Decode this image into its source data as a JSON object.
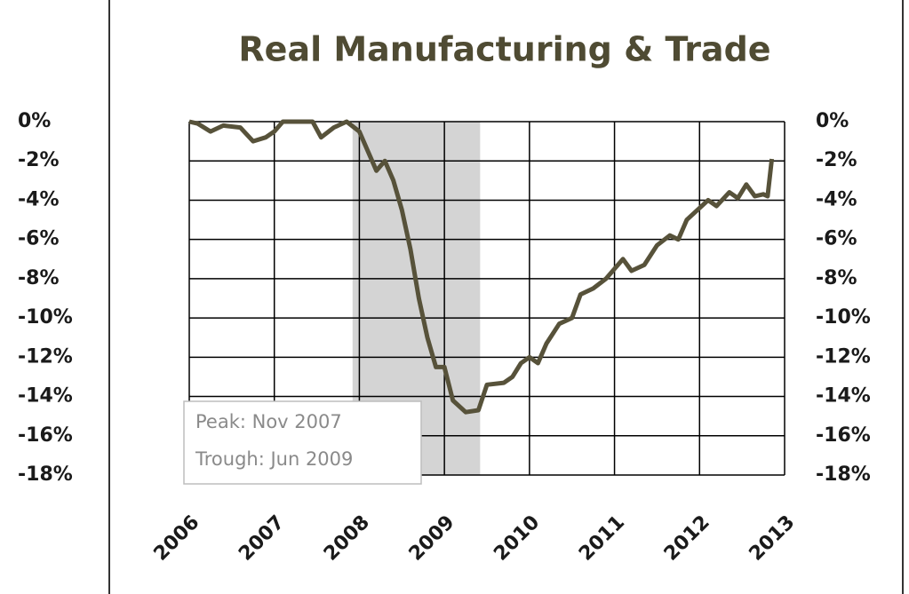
{
  "chart_data": {
    "type": "line",
    "title": "Real Manufacturing & Trade",
    "series": [
      {
        "name": "Real Manufacturing & Trade",
        "color": "#57523a",
        "x": [
          2006.0,
          2006.1,
          2006.25,
          2006.4,
          2006.6,
          2006.75,
          2006.9,
          2007.0,
          2007.1,
          2007.3,
          2007.45,
          2007.55,
          2007.7,
          2007.85,
          2008.0,
          2008.1,
          2008.2,
          2008.3,
          2008.4,
          2008.5,
          2008.6,
          2008.7,
          2008.8,
          2008.9,
          2009.0,
          2009.1,
          2009.25,
          2009.4,
          2009.5,
          2009.7,
          2009.8,
          2009.9,
          2010.0,
          2010.1,
          2010.2,
          2010.35,
          2010.5,
          2010.6,
          2010.75,
          2010.9,
          2011.0,
          2011.1,
          2011.2,
          2011.35,
          2011.5,
          2011.65,
          2011.75,
          2011.85,
          2012.0,
          2012.1,
          2012.2,
          2012.35,
          2012.45,
          2012.55,
          2012.65,
          2012.75,
          2012.8,
          2012.85
        ],
        "values": [
          0,
          -0.1,
          -0.5,
          -0.2,
          -0.3,
          -1.0,
          -0.8,
          -0.5,
          0,
          0,
          0,
          -0.8,
          -0.3,
          0,
          -0.5,
          -1.5,
          -2.5,
          -2.0,
          -3.0,
          -4.5,
          -6.5,
          -9.0,
          -11.0,
          -12.5,
          -12.5,
          -14.2,
          -14.8,
          -14.7,
          -13.4,
          -13.3,
          -13.0,
          -12.3,
          -12.0,
          -12.3,
          -11.3,
          -10.3,
          -10.0,
          -8.8,
          -8.5,
          -8.0,
          -7.5,
          -7.0,
          -7.6,
          -7.3,
          -6.3,
          -5.8,
          -6.0,
          -5.0,
          -4.4,
          -4.0,
          -4.3,
          -3.6,
          -3.9,
          -3.2,
          -3.8,
          -3.7,
          -3.8,
          -1.9
        ]
      }
    ],
    "xlim": [
      2006,
      2013
    ],
    "xticks": [
      2006,
      2007,
      2008,
      2009,
      2010,
      2011,
      2012,
      2013
    ],
    "ylim": [
      -18,
      0
    ],
    "yticks": [
      {
        "value": 0,
        "label": "0%"
      },
      {
        "value": -2,
        "label": "-2%"
      },
      {
        "value": -4,
        "label": "-4%"
      },
      {
        "value": -6,
        "label": "-6%"
      },
      {
        "value": -8,
        "label": "-8%"
      },
      {
        "value": -10,
        "label": "-10%"
      },
      {
        "value": -12,
        "label": "-12%"
      },
      {
        "value": -14,
        "label": "-14%"
      },
      {
        "value": -16,
        "label": "-16%"
      },
      {
        "value": -18,
        "label": "-18%"
      }
    ],
    "grid": true,
    "shaded_x": [
      2007.92,
      2009.42
    ],
    "annotations": [
      "Peak: Nov 2007",
      "Trough: Jun 2009"
    ]
  }
}
